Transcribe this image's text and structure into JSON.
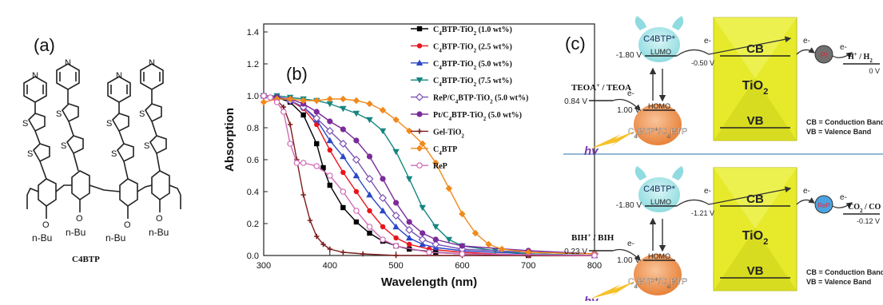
{
  "panel_a": {
    "letter": "(a)",
    "compound_label": "C4BTP",
    "pyridine_N": "N",
    "thiophene_S": "S",
    "oxygen": "O",
    "substituent": "n-Bu"
  },
  "panel_b": {
    "letter": "(b)"
  },
  "chart_data": {
    "type": "line",
    "xlabel": "Wavelength (nm)",
    "ylabel": "Absorption",
    "xlim": [
      300,
      800
    ],
    "ylim": [
      0,
      1.45
    ],
    "xticks": [
      300,
      400,
      500,
      600,
      700,
      800
    ],
    "xtick_labels": [
      "300",
      "400",
      "500",
      "600",
      "700",
      "800"
    ],
    "yticks": [
      0.0,
      0.2,
      0.4,
      0.6,
      0.8,
      1.0,
      1.2,
      1.4
    ],
    "ytick_labels": [
      "0.0",
      "0.2",
      "0.4",
      "0.6",
      "0.8",
      "1.0",
      "1.2",
      "1.4"
    ],
    "grid": false,
    "legend_position": "top-right",
    "series": [
      {
        "name": "C4BTP-TiO2 (1.0 wt%)",
        "color": "#000000",
        "marker": "square",
        "points": [
          [
            300,
            1.0
          ],
          [
            320,
            0.99
          ],
          [
            340,
            0.96
          ],
          [
            360,
            0.88
          ],
          [
            380,
            0.7
          ],
          [
            390,
            0.55
          ],
          [
            400,
            0.44
          ],
          [
            420,
            0.3
          ],
          [
            440,
            0.21
          ],
          [
            460,
            0.14
          ],
          [
            480,
            0.09
          ],
          [
            500,
            0.06
          ],
          [
            520,
            0.04
          ],
          [
            560,
            0.02
          ],
          [
            600,
            0.01
          ],
          [
            700,
            0.0
          ],
          [
            800,
            0.0
          ]
        ]
      },
      {
        "name": "C4BTP-TiO2 (2.5 wt%)",
        "color": "#e8141c",
        "marker": "circle",
        "points": [
          [
            300,
            1.0
          ],
          [
            320,
            0.99
          ],
          [
            340,
            0.97
          ],
          [
            360,
            0.92
          ],
          [
            380,
            0.82
          ],
          [
            400,
            0.66
          ],
          [
            420,
            0.52
          ],
          [
            440,
            0.4
          ],
          [
            460,
            0.28
          ],
          [
            480,
            0.18
          ],
          [
            500,
            0.11
          ],
          [
            520,
            0.07
          ],
          [
            550,
            0.04
          ],
          [
            600,
            0.02
          ],
          [
            700,
            0.0
          ],
          [
            800,
            0.0
          ]
        ]
      },
      {
        "name": "C4BTP-TiO2 (5.0 wt%)",
        "color": "#2a46c8",
        "marker": "triangle-up",
        "points": [
          [
            300,
            1.0
          ],
          [
            320,
            0.99
          ],
          [
            340,
            0.97
          ],
          [
            360,
            0.93
          ],
          [
            380,
            0.85
          ],
          [
            400,
            0.72
          ],
          [
            420,
            0.62
          ],
          [
            440,
            0.5
          ],
          [
            460,
            0.38
          ],
          [
            480,
            0.28
          ],
          [
            500,
            0.18
          ],
          [
            520,
            0.11
          ],
          [
            540,
            0.07
          ],
          [
            560,
            0.05
          ],
          [
            600,
            0.03
          ],
          [
            700,
            0.01
          ],
          [
            800,
            0.0
          ]
        ]
      },
      {
        "name": "C4BTP-TiO2 (7.5 wt%)",
        "color": "#15857f",
        "marker": "triangle-down",
        "points": [
          [
            300,
            1.0
          ],
          [
            320,
            1.0
          ],
          [
            340,
            0.99
          ],
          [
            360,
            0.98
          ],
          [
            380,
            0.97
          ],
          [
            400,
            0.95
          ],
          [
            420,
            0.92
          ],
          [
            440,
            0.89
          ],
          [
            460,
            0.85
          ],
          [
            480,
            0.78
          ],
          [
            500,
            0.65
          ],
          [
            520,
            0.48
          ],
          [
            540,
            0.3
          ],
          [
            560,
            0.18
          ],
          [
            580,
            0.1
          ],
          [
            600,
            0.06
          ],
          [
            650,
            0.03
          ],
          [
            700,
            0.01
          ],
          [
            800,
            0.0
          ]
        ]
      },
      {
        "name": "ReP/C4BTP-TiO2 (5.0 wt%)",
        "color": "#7a52b5",
        "marker": "diamond-open",
        "points": [
          [
            300,
            1.0
          ],
          [
            320,
            0.99
          ],
          [
            340,
            0.97
          ],
          [
            360,
            0.93
          ],
          [
            380,
            0.86
          ],
          [
            400,
            0.78
          ],
          [
            420,
            0.7
          ],
          [
            440,
            0.6
          ],
          [
            460,
            0.48
          ],
          [
            480,
            0.36
          ],
          [
            500,
            0.25
          ],
          [
            520,
            0.16
          ],
          [
            540,
            0.1
          ],
          [
            560,
            0.07
          ],
          [
            600,
            0.04
          ],
          [
            700,
            0.02
          ],
          [
            800,
            0.01
          ]
        ]
      },
      {
        "name": "Pt/C4BTP-TiO2 (5.0 wt%)",
        "color": "#7b2a9a",
        "marker": "hexagon",
        "points": [
          [
            300,
            1.0
          ],
          [
            320,
            0.99
          ],
          [
            340,
            0.98
          ],
          [
            360,
            0.95
          ],
          [
            380,
            0.9
          ],
          [
            400,
            0.84
          ],
          [
            420,
            0.79
          ],
          [
            440,
            0.72
          ],
          [
            460,
            0.62
          ],
          [
            480,
            0.48
          ],
          [
            500,
            0.33
          ],
          [
            520,
            0.21
          ],
          [
            540,
            0.14
          ],
          [
            560,
            0.1
          ],
          [
            600,
            0.06
          ],
          [
            700,
            0.03
          ],
          [
            800,
            0.01
          ]
        ]
      },
      {
        "name": "Gel-TiO2",
        "color": "#7a1c1c",
        "marker": "plus",
        "points": [
          [
            300,
            1.0
          ],
          [
            310,
            0.99
          ],
          [
            320,
            0.97
          ],
          [
            330,
            0.93
          ],
          [
            340,
            0.82
          ],
          [
            350,
            0.6
          ],
          [
            360,
            0.38
          ],
          [
            370,
            0.22
          ],
          [
            380,
            0.12
          ],
          [
            390,
            0.07
          ],
          [
            400,
            0.04
          ],
          [
            420,
            0.02
          ],
          [
            450,
            0.01
          ],
          [
            500,
            0.0
          ],
          [
            600,
            0.0
          ],
          [
            800,
            0.0
          ]
        ]
      },
      {
        "name": "C4BTP",
        "color": "#f08a1c",
        "marker": "diamond",
        "points": [
          [
            300,
            0.96
          ],
          [
            320,
            0.98
          ],
          [
            340,
            0.98
          ],
          [
            360,
            0.97
          ],
          [
            380,
            0.97
          ],
          [
            400,
            0.98
          ],
          [
            420,
            0.98
          ],
          [
            440,
            0.97
          ],
          [
            460,
            0.95
          ],
          [
            480,
            0.91
          ],
          [
            500,
            0.85
          ],
          [
            520,
            0.78
          ],
          [
            540,
            0.7
          ],
          [
            560,
            0.58
          ],
          [
            580,
            0.42
          ],
          [
            600,
            0.26
          ],
          [
            620,
            0.14
          ],
          [
            640,
            0.07
          ],
          [
            660,
            0.04
          ],
          [
            700,
            0.02
          ],
          [
            800,
            0.01
          ]
        ]
      },
      {
        "name": "ReP",
        "color": "#d06ab8",
        "marker": "circle-open",
        "points": [
          [
            300,
            1.0
          ],
          [
            310,
            0.99
          ],
          [
            320,
            0.96
          ],
          [
            330,
            0.9
          ],
          [
            340,
            0.7
          ],
          [
            350,
            0.58
          ],
          [
            360,
            0.58
          ],
          [
            380,
            0.56
          ],
          [
            400,
            0.5
          ],
          [
            420,
            0.4
          ],
          [
            440,
            0.28
          ],
          [
            460,
            0.18
          ],
          [
            480,
            0.1
          ],
          [
            500,
            0.06
          ],
          [
            550,
            0.02
          ],
          [
            600,
            0.01
          ],
          [
            800,
            0.0
          ]
        ]
      }
    ]
  },
  "panel_c": {
    "letter": "(c)",
    "top": {
      "dye_label": "C4BTP*",
      "lumo": "LUMO",
      "lumo_potential": "-1.80 V",
      "homo": "HOMO",
      "homo_potential": "1.00 V",
      "ground_label": "C4BTP+/C4BTP",
      "donor_couple": "TEOA+ / TEOA",
      "donor_potential": "0.84 V",
      "cb": "CB",
      "cb_potential": "-0.50 V",
      "vb": "VB",
      "semiconductor": "TiO2",
      "catalyst": "Pt",
      "product_couple": "H+ / H2",
      "product_potential": "0 V",
      "electron": "e-",
      "hv": "hv",
      "legend_cb": "CB = Conduction Band",
      "legend_vb": "VB = Valence Band"
    },
    "bottom": {
      "dye_label": "C4BTP*",
      "lumo": "LUMO",
      "lumo_potential": "-1.80 V",
      "homo": "HOMO",
      "homo_potential": "1.00 V",
      "ground_label": "C4BTP+/C4BTP",
      "donor_couple": "BIH+ / BIH",
      "donor_potential": "0.23 V",
      "cb": "CB",
      "cb_potential": "-1.21 V",
      "vb": "VB",
      "semiconductor": "TiO2",
      "catalyst": "ReP",
      "product_couple": "CO2 / CO",
      "product_potential": "-0.12 V",
      "electron": "e-",
      "hv": "hv",
      "legend_cb": "CB = Conduction Band",
      "legend_vb": "VB = Valence Band"
    },
    "colors": {
      "dye_excited": "#8fdbe0",
      "dye_ground": "#e8823a",
      "tio2": "#e6ea2a",
      "tio2_dark": "#b9bd12",
      "divider": "#6ea0c8",
      "catalyst_pt": "#707070",
      "catalyst_rep": "#4aa3e0"
    }
  }
}
